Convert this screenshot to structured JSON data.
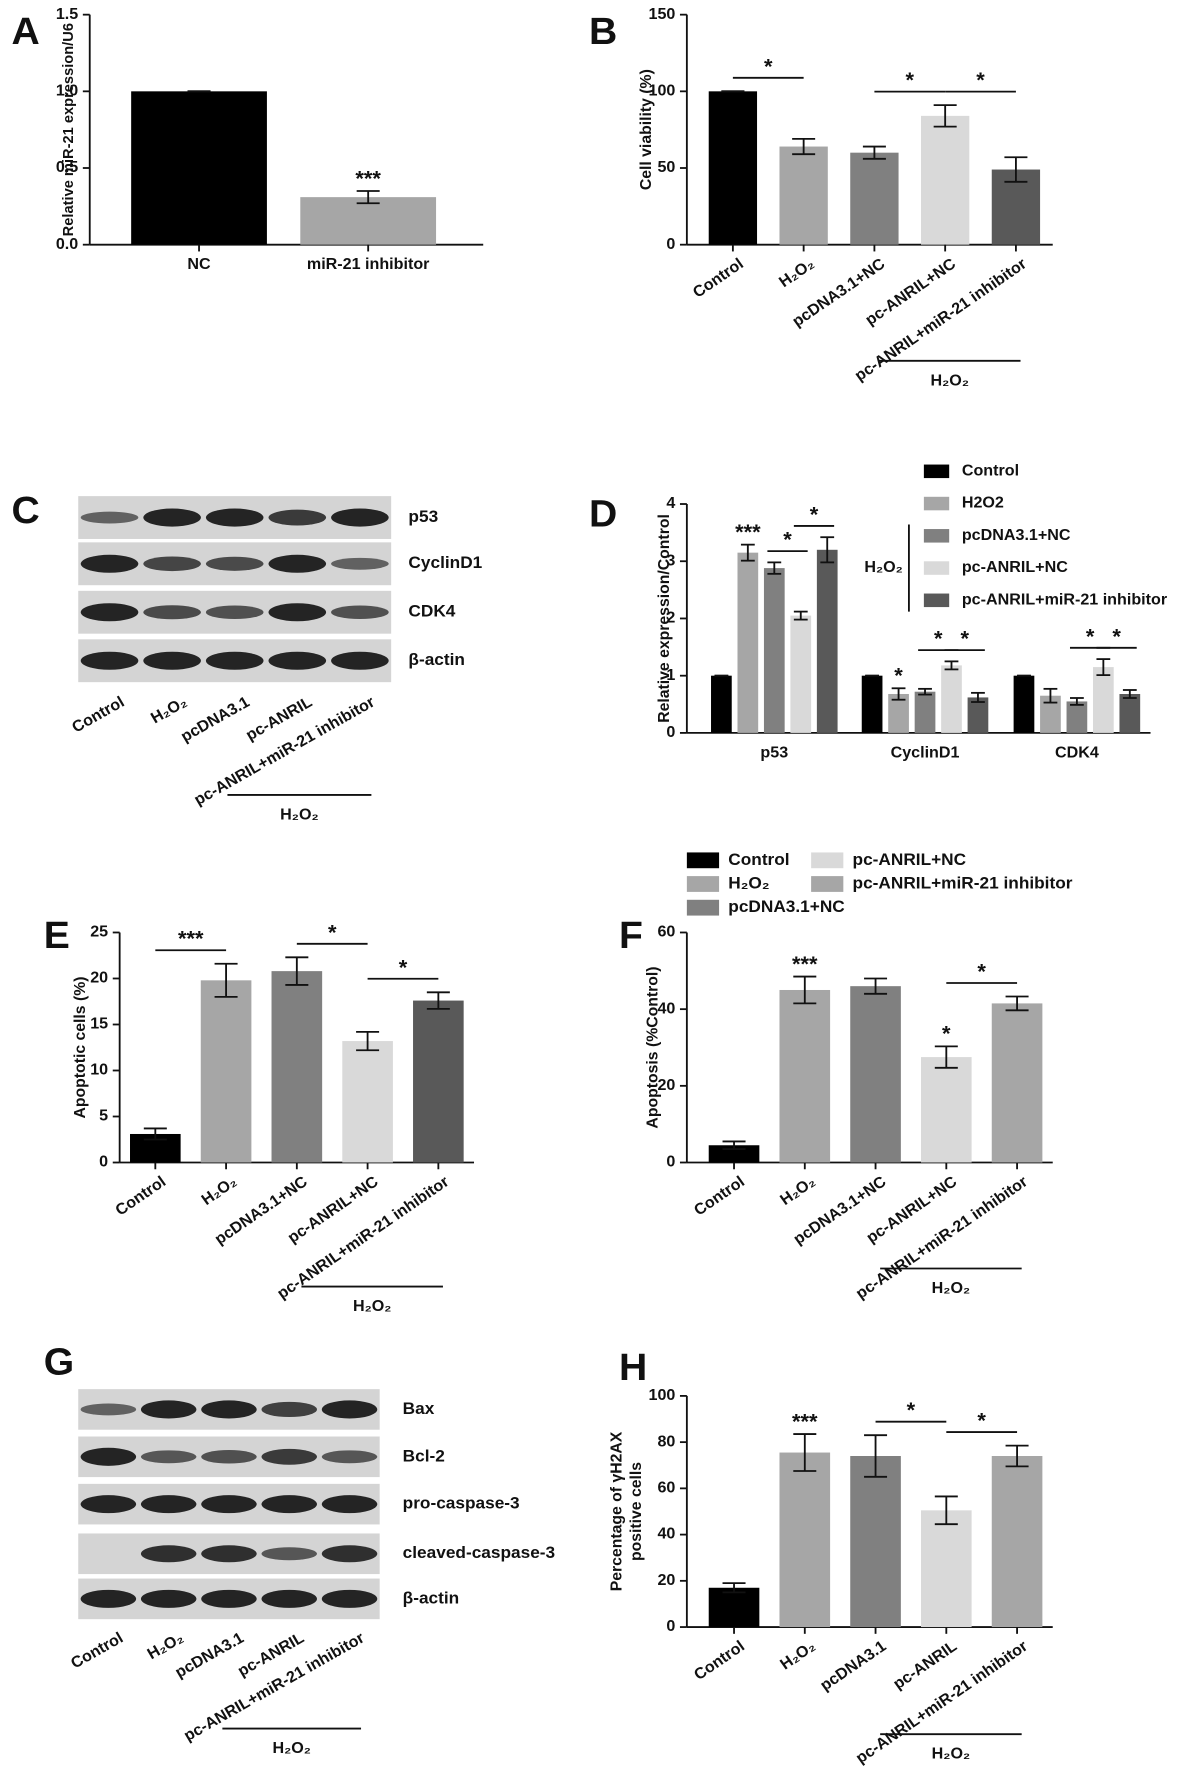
{
  "chart_data": [
    {
      "type": "bar",
      "panel": "A",
      "ylabel": [
        "Relative miR-21 expression/U6"
      ],
      "categories": [
        "NC",
        "miR-21 inhibitor"
      ],
      "values": [
        1.0,
        0.31
      ],
      "errors": [
        0,
        0.04
      ],
      "colors": [
        "#000000",
        "#a6a6a6"
      ],
      "ylim": [
        0,
        1.5
      ],
      "yticks": [
        {
          "value": 0,
          "label": "0.0"
        },
        0.5,
        {
          "value": 1,
          "label": "1.0"
        },
        1.5
      ],
      "annotations": [
        {
          "bar": 1,
          "text": "***"
        }
      ],
      "brackets": []
    },
    {
      "type": "bar",
      "panel": "B",
      "ylabel": [
        "Cell viability (%)"
      ],
      "categories": [
        "Control",
        "H₂O₂",
        "pcDNA3.1+NC",
        "pc-ANRIL+NC",
        "pc-ANRIL+miR-21 inhibitor"
      ],
      "values": [
        100,
        64,
        60,
        84,
        49
      ],
      "errors": [
        0,
        5,
        4,
        7,
        8
      ],
      "colors": [
        "#000000",
        "#a6a6a6",
        "#808080",
        "#d9d9d9",
        "#595959"
      ],
      "ylim": [
        0,
        150
      ],
      "yticks": [
        0,
        50,
        100,
        150
      ],
      "annotations": [],
      "brackets": [
        {
          "between": [
            0,
            1
          ],
          "text": "*"
        },
        {
          "between": [
            2,
            3
          ],
          "text": "*"
        },
        {
          "between": [
            3,
            4
          ],
          "text": "*"
        }
      ],
      "group": {
        "label": "H₂O₂",
        "from": 2,
        "to": 4
      }
    },
    {
      "type": "grouped_bar",
      "panel": "D",
      "ylabel": [
        "Relative expression/Control"
      ],
      "categories": [
        "p53",
        "CyclinD1",
        "CDK4"
      ],
      "series": [
        {
          "name": "Control",
          "color": "#000000",
          "values": [
            1,
            1,
            1
          ],
          "errors": [
            0,
            0,
            0
          ]
        },
        {
          "name": "H2O2",
          "color": "#a6a6a6",
          "values": [
            3.15,
            0.68,
            0.65
          ],
          "errors": [
            0.14,
            0.1,
            0.12
          ]
        },
        {
          "name": "pcDNA3.1+NC",
          "color": "#808080",
          "values": [
            2.88,
            0.72,
            0.55
          ],
          "errors": [
            0.1,
            0.05,
            0.06
          ]
        },
        {
          "name": "pc-ANRIL+NC",
          "color": "#d9d9d9",
          "values": [
            2.05,
            1.18,
            1.15
          ],
          "errors": [
            0.07,
            0.07,
            0.14
          ]
        },
        {
          "name": "pc-ANRIL+miR-21 inhibitor",
          "color": "#595959",
          "values": [
            3.2,
            0.62,
            0.68
          ],
          "errors": [
            0.22,
            0.08,
            0.07
          ]
        }
      ],
      "ylim": [
        0,
        4
      ],
      "yticks": [
        0,
        1,
        2,
        3,
        4
      ],
      "legend_group": {
        "label": "H₂O₂",
        "from": 2,
        "to": 4
      },
      "annotations": [
        {
          "category": 0,
          "series": 1,
          "text": "***"
        },
        {
          "category": 1,
          "series": 1,
          "text": "*"
        }
      ],
      "brackets": [
        {
          "category": 0,
          "between": [
            2,
            3
          ],
          "text": "*"
        },
        {
          "category": 0,
          "between": [
            3,
            4
          ],
          "text": "*"
        },
        {
          "category": 1,
          "between": [
            2,
            3
          ],
          "text": "*"
        },
        {
          "category": 1,
          "between": [
            3,
            4
          ],
          "text": "*"
        },
        {
          "category": 2,
          "between": [
            2,
            3
          ],
          "text": "*"
        },
        {
          "category": 2,
          "between": [
            3,
            4
          ],
          "text": "*"
        }
      ]
    },
    {
      "type": "bar",
      "panel": "E",
      "ylabel": [
        "Apoptotic cells (%)"
      ],
      "categories": [
        "Control",
        "H₂O₂",
        "pcDNA3.1+NC",
        "pc-ANRIL+NC",
        "pc-ANRIL+miR-21 inhibitor"
      ],
      "values": [
        3.1,
        19.8,
        20.8,
        13.2,
        17.6
      ],
      "errors": [
        0.6,
        1.8,
        1.5,
        1.0,
        0.9
      ],
      "colors": [
        "#000000",
        "#a6a6a6",
        "#808080",
        "#d9d9d9",
        "#595959"
      ],
      "ylim": [
        0,
        25
      ],
      "yticks": [
        0,
        5,
        10,
        15,
        20,
        25
      ],
      "annotations": [],
      "brackets": [
        {
          "between": [
            0,
            1
          ],
          "text": "***"
        },
        {
          "between": [
            2,
            3
          ],
          "text": "*"
        },
        {
          "between": [
            3,
            4
          ],
          "text": "*"
        }
      ],
      "group": {
        "label": "H₂O₂",
        "from": 2,
        "to": 4
      }
    },
    {
      "type": "bar",
      "panel": "F",
      "ylabel": [
        "Apoptosis (%Control)"
      ],
      "categories": [
        "Control",
        "H₂O₂",
        "pcDNA3.1+NC",
        "pc-ANRIL+NC",
        "pc-ANRIL+miR-21 inhibitor"
      ],
      "values": [
        4.5,
        45,
        46,
        27.5,
        41.5
      ],
      "errors": [
        1,
        3.5,
        2,
        2.8,
        1.8
      ],
      "colors": [
        "#000000",
        "#a6a6a6",
        "#808080",
        "#d9d9d9",
        "#a6a6a6"
      ],
      "legend": [
        "Control",
        "H₂O₂",
        "pcDNA3.1+NC",
        "pc-ANRIL+NC",
        "pc-ANRIL+miR-21 inhibitor"
      ],
      "ylim": [
        0,
        60
      ],
      "yticks": [
        0,
        20,
        40,
        60
      ],
      "annotations": [
        {
          "bar": 1,
          "text": "***"
        },
        {
          "bar": 3,
          "text": "*"
        }
      ],
      "brackets": [
        {
          "between": [
            3,
            4
          ],
          "text": "*"
        }
      ],
      "group": {
        "label": "H₂O₂",
        "from": 2,
        "to": 4
      }
    },
    {
      "type": "bar",
      "panel": "H",
      "ylabel": [
        "Percentage of γH2AX",
        "positive cells"
      ],
      "categories": [
        "Control",
        "H₂O₂",
        "pcDNA3.1",
        "pc-ANRIL",
        "pc-ANRIL+miR-21 inhibitor"
      ],
      "values": [
        17,
        75.5,
        74,
        50.5,
        74
      ],
      "errors": [
        2,
        8,
        9,
        6,
        4.5
      ],
      "colors": [
        "#000000",
        "#a6a6a6",
        "#808080",
        "#d9d9d9",
        "#a6a6a6"
      ],
      "ylim": [
        0,
        100
      ],
      "yticks": [
        0,
        20,
        40,
        60,
        80,
        100
      ],
      "annotations": [
        {
          "bar": 1,
          "text": "***"
        }
      ],
      "brackets": [
        {
          "between": [
            2,
            3
          ],
          "text": "*"
        },
        {
          "between": [
            3,
            4
          ],
          "text": "*"
        }
      ],
      "group": {
        "label": "H₂O₂",
        "from": 2,
        "to": 4
      }
    }
  ],
  "blots": [
    {
      "panel": "C",
      "rows": [
        "p53",
        "CyclinD1",
        "CDK4",
        "β-actin"
      ],
      "lanes": [
        "Control",
        "H₂O₂",
        "pcDNA3.1",
        "pc-ANRIL",
        "pc-ANRIL+miR-21 inhibitor"
      ],
      "group": {
        "label": "H₂O₂",
        "from": 2,
        "to": 4
      }
    },
    {
      "panel": "G",
      "rows": [
        "Bax",
        "Bcl-2",
        "pro-caspase-3",
        "cleaved-caspase-3",
        "β-actin"
      ],
      "lanes": [
        "Control",
        "H₂O₂",
        "pcDNA3.1",
        "pc-ANRIL",
        "pc-ANRIL+miR-21 inhibitor"
      ],
      "group": {
        "label": "H₂O₂",
        "from": 2,
        "to": 4
      }
    }
  ]
}
